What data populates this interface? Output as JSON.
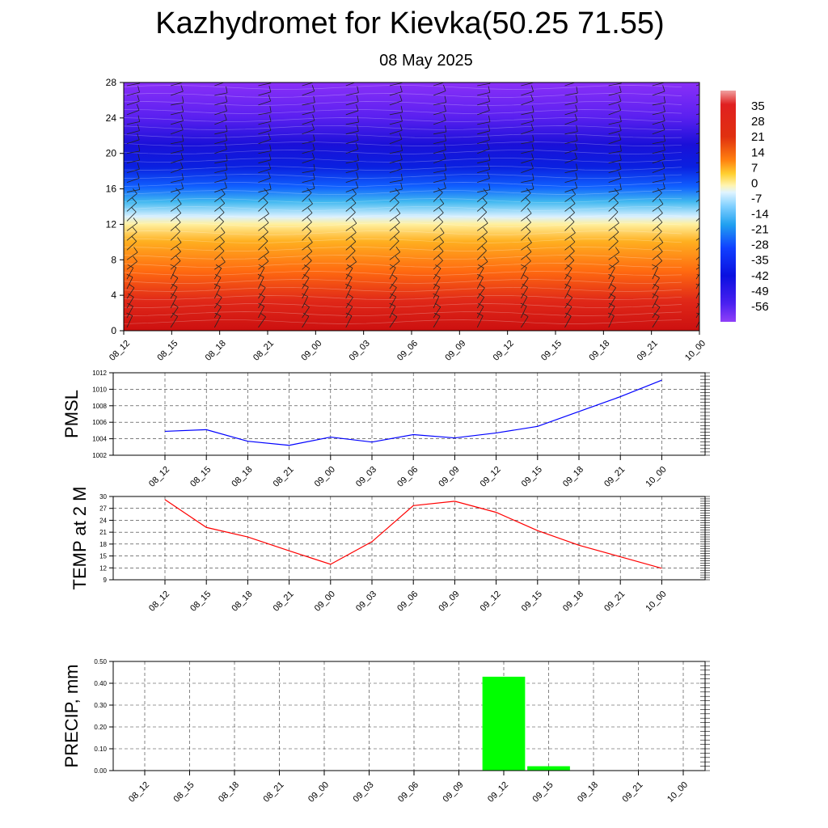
{
  "title": "Kazhydromet for Kievka(50.25 71.55)",
  "subtitle": "08 May 2025",
  "time_labels": [
    "08_12",
    "08_15",
    "08_18",
    "08_21",
    "09_00",
    "09_03",
    "09_06",
    "09_09",
    "09_12",
    "09_15",
    "09_18",
    "09_21",
    "10_00"
  ],
  "chart_data": [
    {
      "type": "heatmap",
      "name": "temperature-cross-section",
      "x": [
        "08_12",
        "08_15",
        "08_18",
        "08_21",
        "09_00",
        "09_03",
        "09_06",
        "09_09",
        "09_12",
        "09_15",
        "09_18",
        "09_21",
        "10_00"
      ],
      "y_ticks": [
        0,
        4,
        8,
        12,
        16,
        20,
        24,
        28
      ],
      "ylim": [
        0,
        28
      ],
      "colorbar": {
        "labels": [
          35,
          28,
          21,
          14,
          7,
          0,
          -7,
          -14,
          -21,
          -28,
          -35,
          -42,
          -49,
          -56
        ],
        "range": [
          -63,
          42
        ]
      },
      "has_wind_barbs": true
    },
    {
      "type": "line",
      "ylabel": "PMSL",
      "x": [
        "08_12",
        "08_15",
        "08_18",
        "08_21",
        "09_00",
        "09_03",
        "09_06",
        "09_09",
        "09_12",
        "09_15",
        "09_18",
        "09_21",
        "10_00"
      ],
      "values": [
        1004.9,
        1005.1,
        1003.7,
        1003.2,
        1004.2,
        1003.6,
        1004.5,
        1004.1,
        1004.7,
        1005.5,
        1007.3,
        1009.1,
        1011.1
      ],
      "y_ticks": [
        1002,
        1004,
        1006,
        1008,
        1010,
        1012
      ],
      "ylim": [
        1002,
        1012
      ],
      "color": "#0000ff",
      "grid": true
    },
    {
      "type": "line",
      "ylabel": "TEMP at 2 M",
      "x": [
        "08_12",
        "08_15",
        "08_18",
        "08_21",
        "09_00",
        "09_03",
        "09_06",
        "09_09",
        "09_12",
        "09_15",
        "09_18",
        "09_21",
        "10_00"
      ],
      "values": [
        29.2,
        22.2,
        19.8,
        16.3,
        12.9,
        18.6,
        27.7,
        28.8,
        26.0,
        21.4,
        17.7,
        14.8,
        11.9
      ],
      "y_ticks": [
        9,
        12,
        15,
        18,
        21,
        24,
        27,
        30
      ],
      "ylim": [
        9,
        30
      ],
      "color": "#ff0000",
      "grid": true
    },
    {
      "type": "bar",
      "ylabel": "PRECIP, mm",
      "categories": [
        "08_12",
        "08_15",
        "08_18",
        "08_21",
        "09_00",
        "09_03",
        "09_06",
        "09_09",
        "09_12",
        "09_15",
        "09_18",
        "09_21",
        "10_00"
      ],
      "values": [
        0,
        0,
        0,
        0,
        0,
        0,
        0,
        0,
        0.43,
        0.02,
        0,
        0,
        0
      ],
      "y_ticks": [
        "0.00",
        "0.10",
        "0.20",
        "0.30",
        "0.40",
        "0.50"
      ],
      "ylim": [
        0,
        0.5
      ],
      "color": "#00ff00",
      "grid": true
    }
  ]
}
